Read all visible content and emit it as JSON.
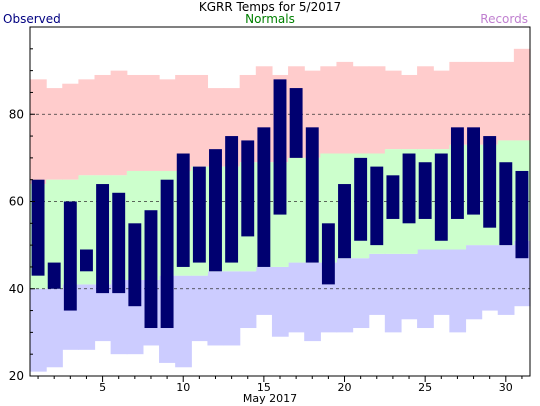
{
  "chart_data": {
    "type": "bar",
    "title": "KGRR Temps for 5/2017",
    "xlabel": "May 2017",
    "ylabel": "",
    "xlim": [
      0.5,
      31.5
    ],
    "ylim": [
      20,
      100
    ],
    "x_ticks": [
      5,
      10,
      15,
      20,
      25,
      30
    ],
    "y_ticks": [
      20,
      40,
      60,
      80
    ],
    "gridlines_y": [
      40,
      60,
      80
    ],
    "grid": "dashed horizontal at 40, 60, 80",
    "legend": {
      "placement": "top",
      "items": [
        {
          "name": "Observed",
          "color": "#000080"
        },
        {
          "name": "Normals",
          "color": "#008000"
        },
        {
          "name": "Records",
          "color": "#c080d0"
        }
      ]
    },
    "days": [
      1,
      2,
      3,
      4,
      5,
      6,
      7,
      8,
      9,
      10,
      11,
      12,
      13,
      14,
      15,
      16,
      17,
      18,
      19,
      20,
      21,
      22,
      23,
      24,
      25,
      26,
      27,
      28,
      29,
      30,
      31
    ],
    "series": [
      {
        "name": "Records",
        "fill": "#ffcccc",
        "low_fill": "#ccccff",
        "high": [
          88,
          86,
          87,
          88,
          89,
          90,
          89,
          89,
          88,
          89,
          89,
          86,
          86,
          89,
          91,
          89,
          91,
          90,
          91,
          92,
          91,
          91,
          90,
          89,
          91,
          90,
          92,
          92,
          92,
          92,
          95
        ],
        "low": [
          21,
          22,
          26,
          26,
          28,
          25,
          25,
          27,
          23,
          22,
          28,
          27,
          27,
          31,
          34,
          29,
          30,
          28,
          30,
          30,
          31,
          34,
          30,
          33,
          31,
          34,
          30,
          33,
          35,
          34,
          36
        ]
      },
      {
        "name": "Normals",
        "fill": "#ccffcc",
        "high": [
          64,
          65,
          65,
          66,
          66,
          66,
          67,
          67,
          67,
          67,
          68,
          68,
          68,
          69,
          69,
          69,
          70,
          70,
          71,
          71,
          71,
          71,
          72,
          72,
          72,
          72,
          73,
          73,
          73,
          74,
          74
        ],
        "low": [
          40,
          40,
          41,
          41,
          41,
          42,
          42,
          42,
          43,
          43,
          43,
          44,
          44,
          44,
          45,
          45,
          46,
          46,
          46,
          47,
          47,
          48,
          48,
          48,
          49,
          49,
          49,
          50,
          50,
          50,
          51
        ]
      },
      {
        "name": "Observed",
        "fill": "#000070",
        "high": [
          65,
          46,
          60,
          49,
          64,
          62,
          55,
          58,
          65,
          71,
          68,
          72,
          75,
          74,
          77,
          88,
          86,
          77,
          55,
          64,
          70,
          68,
          66,
          71,
          69,
          71,
          77,
          77,
          75,
          69,
          67
        ],
        "low": [
          43,
          40,
          35,
          44,
          39,
          39,
          36,
          31,
          31,
          45,
          46,
          44,
          46,
          52,
          45,
          57,
          70,
          46,
          41,
          47,
          51,
          50,
          56,
          55,
          56,
          51,
          56,
          57,
          54,
          50,
          47
        ]
      }
    ]
  }
}
